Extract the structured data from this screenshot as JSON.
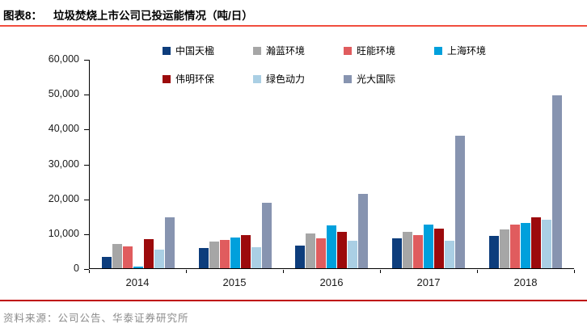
{
  "header": {
    "figure_label": "图表8：",
    "title": "垃圾焚烧上市公司已投运能情况（吨/日）"
  },
  "footer": {
    "source": "资料来源：公司公告、华泰证券研究所"
  },
  "style_colors": {
    "top_rule": "#F14E3F",
    "bottom_rule": "#BF0000",
    "axis": "#000000",
    "source_text": "#8a8a8a"
  },
  "chart_data": {
    "type": "bar",
    "title": "垃圾焚烧上市公司已投运能情况（吨/日）",
    "categories": [
      "2014",
      "2015",
      "2016",
      "2017",
      "2018"
    ],
    "series": [
      {
        "name": "中国天楹",
        "color": "#0D3D7C",
        "values": [
          3300,
          5700,
          6400,
          8600,
          9300
        ]
      },
      {
        "name": "瀚蓝环境",
        "color": "#A6A6A6",
        "values": [
          6900,
          7600,
          10000,
          10500,
          11200
        ]
      },
      {
        "name": "旺能环境",
        "color": "#E05C5E",
        "values": [
          6300,
          8000,
          8500,
          9600,
          12600
        ]
      },
      {
        "name": "上海环境",
        "color": "#00A0DC",
        "values": [
          500,
          8900,
          12300,
          12400,
          13000
        ]
      },
      {
        "name": "伟明环保",
        "color": "#9C0A0C",
        "values": [
          8300,
          9400,
          10400,
          11400,
          14500
        ]
      },
      {
        "name": "绿色动力",
        "color": "#AACFE4",
        "values": [
          5400,
          6000,
          7800,
          7900,
          13900
        ]
      },
      {
        "name": "光大国际",
        "color": "#8794B0",
        "values": [
          14700,
          18700,
          21400,
          38000,
          49600
        ]
      }
    ],
    "xlabel": "",
    "ylabel": "",
    "ylim": [
      0,
      60000
    ],
    "y_ticks": [
      "60,000",
      "50,000",
      "40,000",
      "30,000",
      "20,000",
      "10,000",
      "0"
    ],
    "grid": false,
    "legend_position": "top",
    "legend_rows": [
      4,
      3
    ]
  }
}
